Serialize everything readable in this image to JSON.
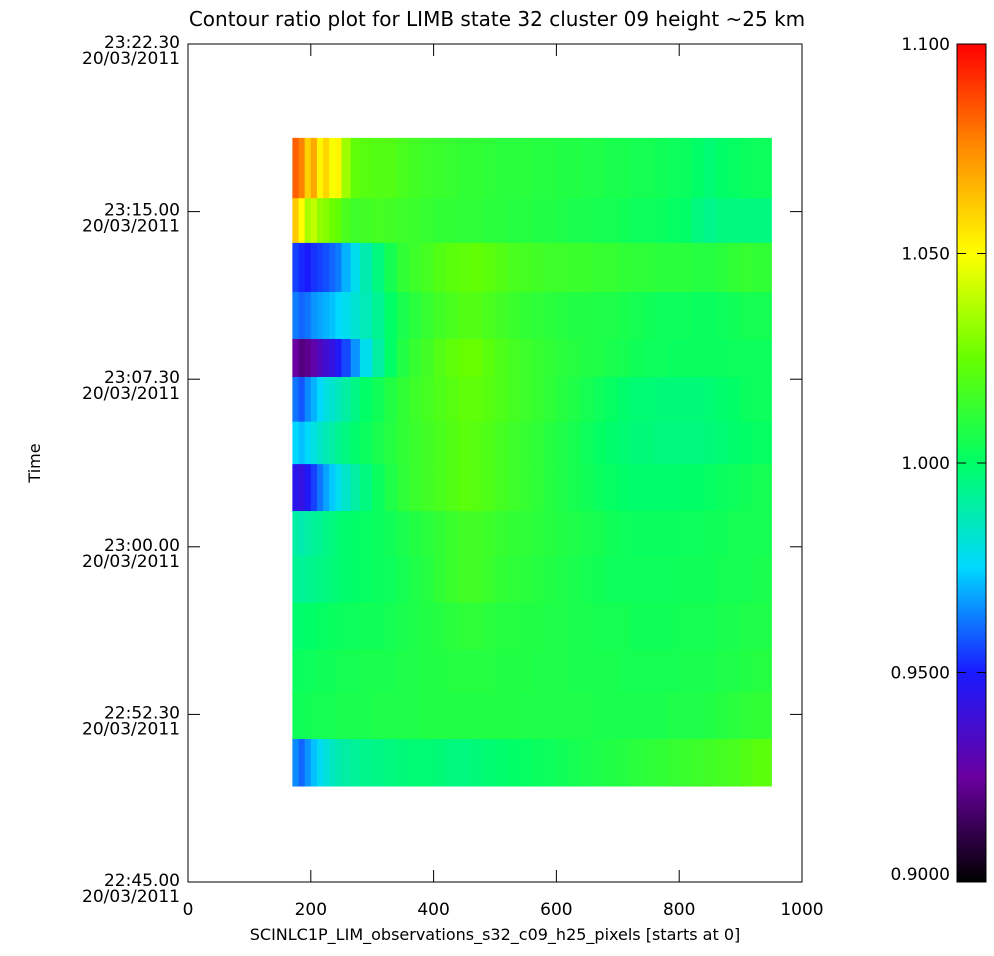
{
  "chart_data": {
    "type": "heatmap",
    "title": "Contour ratio plot for LIMB state 32 cluster 09 height ~25 km",
    "xlabel": "SCINLC1P_LIM_observations_s32_c09_h25_pixels [starts at 0]",
    "ylabel": "Time",
    "xlim": [
      0,
      1000
    ],
    "ylim": [
      "20/03/2011 22:45:00",
      "20/03/2011 23:22:30"
    ],
    "x_ticks": [
      {
        "value": 0,
        "label": "0"
      },
      {
        "value": 200,
        "label": "200"
      },
      {
        "value": 400,
        "label": "400"
      },
      {
        "value": 600,
        "label": "600"
      },
      {
        "value": 800,
        "label": "800"
      },
      {
        "value": 1000,
        "label": "1000"
      }
    ],
    "y_ticks": [
      {
        "time": "23:22.30",
        "date": "20/03/2011",
        "minutes": 37.5
      },
      {
        "time": "23:15.00",
        "date": "20/03/2011",
        "minutes": 30.0
      },
      {
        "time": "23:07.30",
        "date": "20/03/2011",
        "minutes": 22.5
      },
      {
        "time": "23:00.00",
        "date": "20/03/2011",
        "minutes": 15.0
      },
      {
        "time": "22:52.30",
        "date": "20/03/2011",
        "minutes": 7.5
      },
      {
        "time": "22:45.00",
        "date": "20/03/2011",
        "minutes": 0.0
      }
    ],
    "colorbar": {
      "min": 0.9,
      "max": 1.1,
      "ticks": [
        {
          "value": 1.1,
          "label": "1.100"
        },
        {
          "value": 1.05,
          "label": "1.050"
        },
        {
          "value": 1.0,
          "label": "1.000"
        },
        {
          "value": 0.95,
          "label": "0.9500"
        },
        {
          "value": 0.9,
          "label": "0.9000"
        }
      ],
      "colormap": [
        "#000000",
        "#6a00a0",
        "#1a1aff",
        "#00d8ff",
        "#00ff66",
        "#66ff00",
        "#ffff00",
        "#ff8c00",
        "#ff0000"
      ]
    },
    "grid": false,
    "data": {
      "x_range": [
        170,
        950
      ],
      "pixel_edges": [
        170,
        180,
        190,
        200,
        210,
        220,
        230,
        240,
        250,
        265,
        280,
        300,
        320,
        340,
        360,
        380,
        400,
        420,
        440,
        460,
        480,
        500,
        520,
        540,
        560,
        580,
        600,
        620,
        640,
        660,
        680,
        700,
        720,
        740,
        760,
        780,
        800,
        820,
        840,
        860,
        880,
        900,
        920,
        950
      ],
      "rows": [
        {
          "t_start": 30.6,
          "t_end": 33.3,
          "values": [
            1.083,
            1.077,
            1.06,
            1.069,
            1.052,
            1.059,
            1.049,
            1.052,
            1.034,
            1.023,
            1.021,
            1.02,
            1.02,
            1.018,
            1.016,
            1.015,
            1.014,
            1.013,
            1.012,
            1.012,
            1.011,
            1.01,
            1.01,
            1.01,
            1.009,
            1.009,
            1.008,
            1.008,
            1.007,
            1.007,
            1.006,
            1.006,
            1.005,
            1.005,
            1.004,
            1.003,
            1.002,
            1.0,
            0.998,
            1.0,
            1.001,
            1.002,
            1.003
          ]
        },
        {
          "t_start": 28.6,
          "t_end": 30.6,
          "values": [
            1.062,
            1.05,
            1.036,
            1.04,
            1.032,
            1.03,
            1.026,
            1.024,
            1.018,
            1.015,
            1.016,
            1.017,
            1.016,
            1.015,
            1.014,
            1.013,
            1.012,
            1.012,
            1.011,
            1.011,
            1.01,
            1.01,
            1.009,
            1.009,
            1.008,
            1.008,
            1.007,
            1.006,
            1.006,
            1.005,
            1.005,
            1.004,
            1.003,
            1.003,
            1.002,
            1.001,
            1.0,
            0.996,
            0.994,
            0.996,
            0.996,
            0.996,
            0.996
          ]
        },
        {
          "t_start": 26.4,
          "t_end": 28.6,
          "values": [
            0.955,
            0.952,
            0.95,
            0.953,
            0.955,
            0.957,
            0.96,
            0.963,
            0.97,
            0.978,
            0.988,
            0.996,
            1.005,
            1.012,
            1.015,
            1.017,
            1.02,
            1.022,
            1.023,
            1.024,
            1.022,
            1.02,
            1.018,
            1.017,
            1.016,
            1.015,
            1.015,
            1.014,
            1.014,
            1.013,
            1.013,
            1.012,
            1.011,
            1.011,
            1.01,
            1.01,
            1.01,
            1.009,
            1.009,
            1.01,
            1.012,
            1.013,
            1.012
          ]
        },
        {
          "t_start": 24.3,
          "t_end": 26.4,
          "values": [
            0.963,
            0.96,
            0.962,
            0.966,
            0.968,
            0.97,
            0.972,
            0.975,
            0.978,
            0.982,
            0.987,
            0.993,
            1.0,
            1.006,
            1.01,
            1.013,
            1.016,
            1.018,
            1.02,
            1.02,
            1.018,
            1.016,
            1.014,
            1.012,
            1.011,
            1.01,
            1.009,
            1.008,
            1.008,
            1.007,
            1.007,
            1.006,
            1.005,
            1.004,
            1.003,
            1.003,
            1.003,
            1.002,
            1.002,
            1.003,
            1.004,
            1.005,
            1.005
          ]
        },
        {
          "t_start": 22.6,
          "t_end": 24.3,
          "values": [
            0.925,
            0.92,
            0.922,
            0.928,
            0.933,
            0.938,
            0.942,
            0.948,
            0.956,
            0.966,
            0.978,
            0.99,
            1.0,
            1.008,
            1.013,
            1.016,
            1.02,
            1.023,
            1.025,
            1.025,
            1.022,
            1.019,
            1.017,
            1.015,
            1.013,
            1.012,
            1.01,
            1.009,
            1.008,
            1.007,
            1.006,
            1.005,
            1.004,
            1.003,
            1.003,
            1.002,
            1.002,
            1.002,
            1.002,
            1.002,
            1.003,
            1.003,
            1.003
          ]
        },
        {
          "t_start": 20.6,
          "t_end": 22.6,
          "values": [
            0.962,
            0.958,
            0.965,
            0.97,
            0.975,
            0.98,
            0.983,
            0.986,
            0.99,
            0.995,
            1.0,
            1.004,
            1.008,
            1.012,
            1.015,
            1.017,
            1.019,
            1.021,
            1.023,
            1.023,
            1.021,
            1.019,
            1.017,
            1.015,
            1.013,
            1.011,
            1.009,
            1.007,
            1.005,
            1.003,
            1.001,
            0.999,
            0.998,
            0.998,
            0.997,
            0.997,
            0.997,
            0.997,
            0.998,
            0.999,
            1.0,
            1.002,
            1.003
          ]
        },
        {
          "t_start": 18.7,
          "t_end": 20.6,
          "values": [
            0.975,
            0.972,
            0.976,
            0.98,
            0.984,
            0.987,
            0.99,
            0.993,
            0.996,
            0.999,
            1.002,
            1.006,
            1.009,
            1.012,
            1.014,
            1.016,
            1.018,
            1.02,
            1.022,
            1.021,
            1.019,
            1.017,
            1.015,
            1.013,
            1.011,
            1.009,
            1.007,
            1.005,
            1.003,
            1.001,
            0.999,
            0.998,
            0.997,
            0.997,
            0.996,
            0.996,
            0.996,
            0.996,
            0.997,
            0.998,
            0.999,
            1.0,
            1.001
          ]
        },
        {
          "t_start": 16.6,
          "t_end": 18.7,
          "values": [
            0.945,
            0.942,
            0.948,
            0.955,
            0.962,
            0.968,
            0.973,
            0.978,
            0.984,
            0.99,
            0.996,
            1.002,
            1.007,
            1.011,
            1.014,
            1.016,
            1.018,
            1.02,
            1.022,
            1.021,
            1.019,
            1.017,
            1.015,
            1.013,
            1.011,
            1.009,
            1.007,
            1.005,
            1.004,
            1.002,
            1.001,
            1.0,
            0.999,
            0.999,
            0.999,
            0.999,
            1.0,
            1.0,
            1.001,
            1.002,
            1.003,
            1.004,
            1.005
          ]
        },
        {
          "t_start": 14.6,
          "t_end": 16.6,
          "values": [
            0.99,
            0.988,
            0.99,
            0.992,
            0.993,
            0.995,
            0.996,
            0.998,
            0.999,
            1.0,
            1.001,
            1.002,
            1.004,
            1.006,
            1.008,
            1.01,
            1.012,
            1.014,
            1.016,
            1.016,
            1.015,
            1.013,
            1.012,
            1.011,
            1.01,
            1.009,
            1.008,
            1.007,
            1.006,
            1.005,
            1.004,
            1.003,
            1.002,
            1.002,
            1.002,
            1.002,
            1.003,
            1.003,
            1.004,
            1.004,
            1.005,
            1.005,
            1.005
          ]
        },
        {
          "t_start": 12.5,
          "t_end": 14.6,
          "values": [
            0.993,
            0.992,
            0.993,
            0.994,
            0.995,
            0.996,
            0.997,
            0.998,
            0.999,
            1.0,
            1.001,
            1.002,
            1.003,
            1.005,
            1.007,
            1.009,
            1.012,
            1.014,
            1.016,
            1.016,
            1.014,
            1.012,
            1.011,
            1.01,
            1.009,
            1.008,
            1.007,
            1.006,
            1.005,
            1.004,
            1.003,
            1.003,
            1.003,
            1.003,
            1.003,
            1.003,
            1.004,
            1.004,
            1.004,
            1.005,
            1.005,
            1.005,
            1.006
          ]
        },
        {
          "t_start": 10.4,
          "t_end": 12.5,
          "values": [
            0.999,
            0.999,
            1.0,
            1.0,
            1.001,
            1.001,
            1.002,
            1.002,
            1.003,
            1.003,
            1.004,
            1.004,
            1.005,
            1.006,
            1.007,
            1.008,
            1.009,
            1.01,
            1.011,
            1.011,
            1.01,
            1.009,
            1.009,
            1.008,
            1.008,
            1.007,
            1.007,
            1.006,
            1.006,
            1.005,
            1.005,
            1.005,
            1.004,
            1.004,
            1.004,
            1.004,
            1.005,
            1.005,
            1.005,
            1.006,
            1.006,
            1.007,
            1.007
          ]
        },
        {
          "t_start": 8.5,
          "t_end": 10.4,
          "values": [
            1.002,
            1.002,
            1.003,
            1.003,
            1.004,
            1.004,
            1.004,
            1.005,
            1.005,
            1.005,
            1.006,
            1.006,
            1.006,
            1.007,
            1.007,
            1.008,
            1.008,
            1.009,
            1.009,
            1.009,
            1.009,
            1.008,
            1.008,
            1.008,
            1.007,
            1.007,
            1.007,
            1.006,
            1.006,
            1.006,
            1.006,
            1.005,
            1.005,
            1.005,
            1.005,
            1.005,
            1.006,
            1.006,
            1.006,
            1.007,
            1.007,
            1.008,
            1.009
          ]
        },
        {
          "t_start": 6.4,
          "t_end": 8.5,
          "values": [
            1.004,
            1.004,
            1.004,
            1.005,
            1.005,
            1.005,
            1.005,
            1.006,
            1.006,
            1.006,
            1.006,
            1.007,
            1.007,
            1.007,
            1.007,
            1.008,
            1.008,
            1.008,
            1.008,
            1.008,
            1.008,
            1.008,
            1.008,
            1.007,
            1.007,
            1.007,
            1.007,
            1.007,
            1.007,
            1.006,
            1.006,
            1.006,
            1.006,
            1.006,
            1.006,
            1.007,
            1.007,
            1.007,
            1.008,
            1.009,
            1.01,
            1.011,
            1.012
          ]
        },
        {
          "t_start": 4.3,
          "t_end": 6.4,
          "values": [
            0.965,
            0.96,
            0.966,
            0.972,
            0.977,
            0.981,
            0.985,
            0.988,
            0.99,
            0.992,
            0.994,
            0.995,
            0.996,
            0.997,
            0.998,
            0.998,
            0.997,
            0.996,
            0.996,
            0.997,
            0.998,
            0.999,
            1.0,
            1.001,
            1.002,
            1.003,
            1.004,
            1.005,
            1.006,
            1.007,
            1.008,
            1.009,
            1.01,
            1.011,
            1.012,
            1.013,
            1.014,
            1.015,
            1.016,
            1.017,
            1.018,
            1.02,
            1.022
          ]
        }
      ]
    }
  }
}
